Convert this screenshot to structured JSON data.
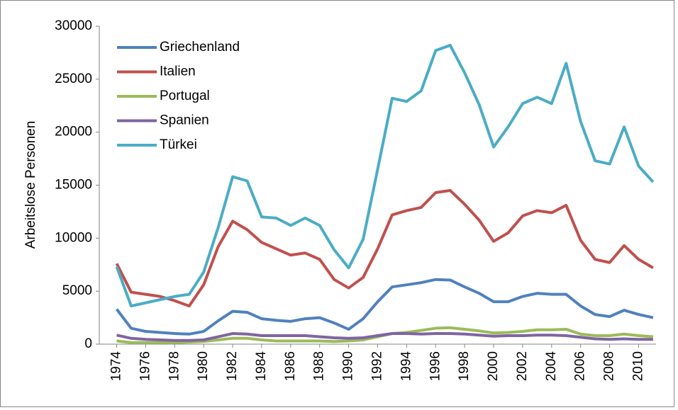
{
  "chart_data": {
    "type": "line",
    "y_label": "Arbeitslose Personen",
    "x": [
      1974,
      1975,
      1976,
      1977,
      1978,
      1979,
      1980,
      1981,
      1982,
      1983,
      1984,
      1985,
      1986,
      1987,
      1988,
      1989,
      1990,
      1991,
      1992,
      1993,
      1994,
      1995,
      1996,
      1997,
      1998,
      1999,
      2000,
      2001,
      2002,
      2003,
      2004,
      2005,
      2006,
      2007,
      2008,
      2009,
      2010,
      2011
    ],
    "xlim": [
      1972.8,
      2011.2
    ],
    "xticks": [
      1974,
      1976,
      1978,
      1980,
      1982,
      1984,
      1986,
      1988,
      1990,
      1992,
      1994,
      1996,
      1998,
      2000,
      2002,
      2004,
      2006,
      2008,
      2010
    ],
    "ylim": [
      0,
      30000
    ],
    "yticks": [
      0,
      5000,
      10000,
      15000,
      20000,
      25000,
      30000
    ],
    "legend": "top-left",
    "series": [
      {
        "name": "Griechenland",
        "color": "#4f81bd",
        "values": [
          3300,
          1500,
          1200,
          1100,
          1000,
          950,
          1200,
          2200,
          3100,
          3000,
          2400,
          2250,
          2150,
          2400,
          2500,
          2000,
          1400,
          2400,
          4000,
          5400,
          5600,
          5800,
          6100,
          6050,
          5400,
          4800,
          4000,
          4000,
          4500,
          4800,
          4700,
          4700,
          3600,
          2800,
          2600,
          3200,
          2800,
          2500
        ]
      },
      {
        "name": "Italien",
        "color": "#c0504d",
        "values": [
          7600,
          4900,
          4700,
          4500,
          4100,
          3600,
          5600,
          9200,
          11600,
          10800,
          9600,
          9000,
          8400,
          8600,
          8000,
          6100,
          5300,
          6300,
          9000,
          12200,
          12600,
          12900,
          14300,
          14500,
          13200,
          11700,
          9700,
          10500,
          12100,
          12600,
          12400,
          13100,
          9800,
          8000,
          7700,
          9300,
          8000,
          7200
        ]
      },
      {
        "name": "Portugal",
        "color": "#9bbb59",
        "values": [
          300,
          150,
          150,
          150,
          150,
          200,
          250,
          400,
          550,
          550,
          400,
          300,
          300,
          300,
          300,
          250,
          300,
          400,
          700,
          1000,
          1100,
          1300,
          1500,
          1550,
          1400,
          1250,
          1050,
          1100,
          1200,
          1350,
          1350,
          1400,
          950,
          800,
          800,
          950,
          800,
          700
        ]
      },
      {
        "name": "Spanien",
        "color": "#8064a2",
        "values": [
          850,
          550,
          450,
          400,
          350,
          350,
          400,
          700,
          1000,
          950,
          800,
          800,
          800,
          800,
          700,
          600,
          550,
          600,
          800,
          1000,
          1000,
          950,
          1000,
          1000,
          950,
          850,
          750,
          800,
          800,
          850,
          850,
          800,
          650,
          500,
          450,
          500,
          450,
          450
        ]
      },
      {
        "name": "Türkei",
        "color": "#4bacc6",
        "values": [
          7300,
          3600,
          3900,
          4200,
          4500,
          4700,
          6800,
          11000,
          15800,
          15400,
          12000,
          11900,
          11200,
          11900,
          11200,
          8900,
          7200,
          9900,
          16500,
          23200,
          22900,
          23900,
          27700,
          28200,
          25600,
          22600,
          18600,
          20500,
          22700,
          23300,
          22700,
          26500,
          21000,
          17300,
          17000,
          20500,
          16800,
          15300
        ]
      }
    ]
  }
}
